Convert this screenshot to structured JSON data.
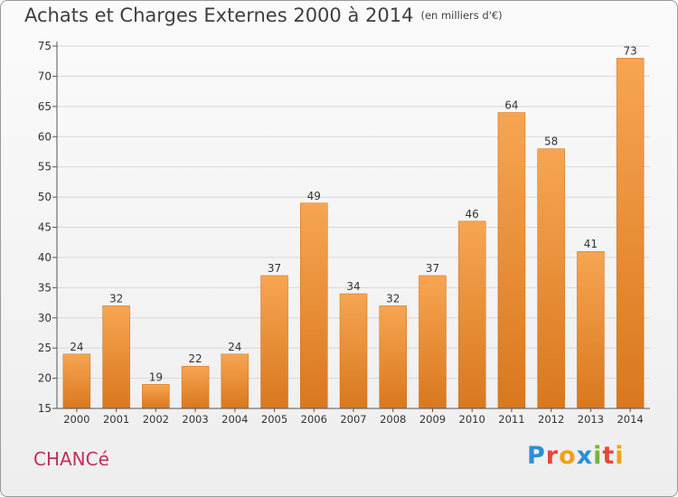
{
  "header": {
    "title": "Achats et Charges Externes 2000 à 2014",
    "subtitle": "(en milliers d'€)"
  },
  "footer": {
    "location": "CHANCé",
    "logo_letters": [
      {
        "char": "P",
        "color": "#2b8fd6"
      },
      {
        "char": "r",
        "color": "#e8463b"
      },
      {
        "char": "o",
        "color": "#f0a11a"
      },
      {
        "char": "x",
        "color": "#2b8fd6"
      },
      {
        "char": "i",
        "color": "#6fb83a"
      },
      {
        "char": "t",
        "color": "#e8463b"
      },
      {
        "char": "i",
        "color": "#f0a11a"
      }
    ]
  },
  "colors": {
    "bar_top": "#f7a552",
    "bar_bottom": "#d9781e",
    "axis": "#555555",
    "grid": "#d8d8d8",
    "text": "#333333"
  },
  "chart_data": {
    "type": "bar",
    "title": "Achats et Charges Externes 2000 à 2014",
    "subtitle": "(en milliers d'€)",
    "categories": [
      "2000",
      "2001",
      "2002",
      "2003",
      "2004",
      "2005",
      "2006",
      "2007",
      "2008",
      "2009",
      "2010",
      "2011",
      "2012",
      "2013",
      "2014"
    ],
    "values": [
      24,
      32,
      19,
      22,
      24,
      37,
      49,
      34,
      32,
      37,
      46,
      64,
      58,
      41,
      73
    ],
    "ylim": [
      15,
      75
    ],
    "yticks": [
      15,
      20,
      25,
      30,
      35,
      40,
      45,
      50,
      55,
      60,
      65,
      70,
      75
    ],
    "xlabel": "",
    "ylabel": "",
    "grid": true,
    "data_labels": true
  }
}
